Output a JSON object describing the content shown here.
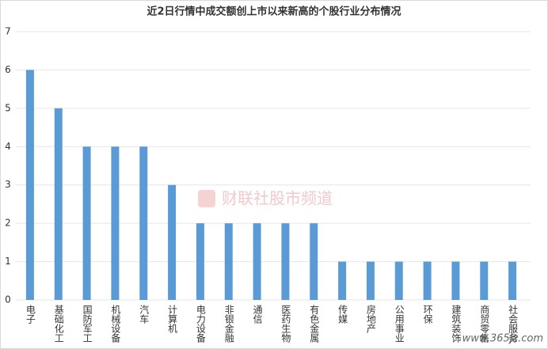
{
  "chart_data": {
    "type": "bar",
    "title": "近2日行情中成交额创上市以来新高的个股行业分布情况",
    "categories": [
      "电子",
      "基础化工",
      "国防军工",
      "机械设备",
      "汽车",
      "计算机",
      "电力设备",
      "非银金融",
      "通信",
      "医药生物",
      "有色金属",
      "传媒",
      "房地产",
      "公用事业",
      "环保",
      "建筑装饰",
      "商贸零售",
      "社会服务"
    ],
    "values": [
      6,
      5,
      4,
      4,
      4,
      3,
      2,
      2,
      2,
      2,
      2,
      1,
      1,
      1,
      1,
      1,
      1,
      1
    ],
    "color": "#5b9bd5",
    "ylim": [
      0,
      7
    ],
    "yticks": [
      0,
      1,
      2,
      3,
      4,
      5,
      6,
      7
    ],
    "grid": true,
    "watermark": "财联社股市频道",
    "site": "www.365jz.com"
  }
}
